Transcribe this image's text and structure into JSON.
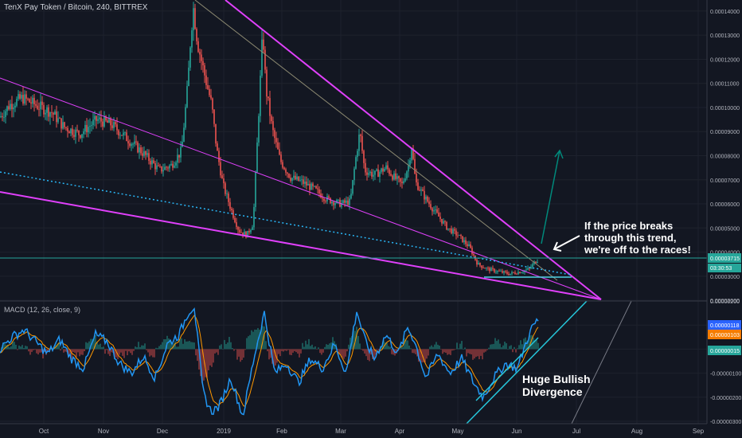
{
  "header": {
    "title": "TenX Pay Token / Bitcoin, 240, BITTREX"
  },
  "colors": {
    "background": "#131722",
    "grid": "#1e222d",
    "candle_up": "#26a69a",
    "candle_down": "#ef5350",
    "wedge": "#e040fb",
    "trendline": "#8d8a72",
    "dotted_trend": "#29b6f6",
    "horizontal_level": "#26a69a",
    "macd_line": "#2196f3",
    "signal_line": "#ff9800",
    "divergence": "#26c6da",
    "arrow": "#00897b"
  },
  "annotations": {
    "breakout_note": "If the price breaks through this trend, we're off to the races!",
    "divergence_note": "Huge Bullish Divergence"
  },
  "chart_data": [
    {
      "type": "candlestick",
      "x_ticks": [
        "Oct",
        "Nov",
        "Dec",
        "2019",
        "Feb",
        "Mar",
        "Apr",
        "May",
        "Jun",
        "Jul",
        "Aug",
        "Sep"
      ],
      "y_ticks": [
        "0.00014000",
        "0.00013000",
        "0.00012000",
        "0.00011000",
        "0.00010000",
        "0.00009000",
        "0.00008000",
        "0.00007000",
        "0.00006000",
        "0.00005000",
        "0.00004000",
        "0.00003000",
        "0.00002000"
      ],
      "ylim": [
        1.97e-05,
        0.0001446
      ],
      "price_tag": "0.00003715",
      "countdown_tag": "03:30:53",
      "path": [
        [
          0,
          9.6e-05
        ],
        [
          12,
          0.000101
        ],
        [
          28,
          0.000104
        ],
        [
          45,
          0.000101
        ],
        [
          65,
          9.8e-05
        ],
        [
          80,
          9.2e-05
        ],
        [
          100,
          8.9e-05
        ],
        [
          122,
          9.5e-05
        ],
        [
          140,
          9.3e-05
        ],
        [
          160,
          8.7e-05
        ],
        [
          180,
          8.1e-05
        ],
        [
          200,
          7.4e-05
        ],
        [
          215,
          7.6e-05
        ],
        [
          228,
          8.2e-05
        ],
        [
          236,
          0.00011
        ],
        [
          240,
          0.000132
        ],
        [
          243,
          0.000141
        ],
        [
          248,
          0.000127
        ],
        [
          258,
          0.000112
        ],
        [
          266,
          0.000101
        ],
        [
          272,
          8.3e-05
        ],
        [
          280,
          6.8e-05
        ],
        [
          290,
          5.8e-05
        ],
        [
          300,
          4.9e-05
        ],
        [
          310,
          4.7e-05
        ],
        [
          318,
          5.2e-05
        ],
        [
          322,
          7.8e-05
        ],
        [
          326,
          0.000105
        ],
        [
          330,
          0.000132
        ],
        [
          334,
          0.000108
        ],
        [
          342,
          9.1e-05
        ],
        [
          352,
          7.8e-05
        ],
        [
          365,
          7.1e-05
        ],
        [
          380,
          6.9e-05
        ],
        [
          395,
          6.6e-05
        ],
        [
          410,
          6.2e-05
        ],
        [
          428,
          6e-05
        ],
        [
          440,
          6.1e-05
        ],
        [
          446,
          7.7e-05
        ],
        [
          452,
          9e-05
        ],
        [
          458,
          7.4e-05
        ],
        [
          470,
          7.2e-05
        ],
        [
          485,
          7.5e-05
        ],
        [
          495,
          7.1e-05
        ],
        [
          505,
          6.8e-05
        ],
        [
          513,
          7.6e-05
        ],
        [
          517,
          8.4e-05
        ],
        [
          522,
          6.9e-05
        ],
        [
          535,
          6.2e-05
        ],
        [
          548,
          5.6e-05
        ],
        [
          562,
          5e-05
        ],
        [
          575,
          4.7e-05
        ],
        [
          590,
          4.2e-05
        ],
        [
          600,
          3.5e-05
        ],
        [
          612,
          3.3e-05
        ],
        [
          625,
          3.2e-05
        ],
        [
          640,
          3.1e-05
        ],
        [
          655,
          3.2e-05
        ],
        [
          665,
          3.3e-05
        ],
        [
          672,
          3.6e-05
        ],
        [
          676,
          3.7e-05
        ]
      ]
    },
    {
      "type": "line",
      "title": "MACD (12, 26, close, 9)",
      "y_ticks": [
        "0.00000200",
        "0.00000100",
        "0.00000000",
        "-0.00000100",
        "-0.00000200",
        "-0.00000300"
      ],
      "ylim": [
        -3.1e-06,
        2e-06
      ],
      "value_tags": [
        "0.00000118",
        "0.00000103",
        "0.00000015"
      ],
      "macd_path": [
        [
          0,
          0.0
        ],
        [
          15,
          5e-07
        ],
        [
          30,
          8e-07
        ],
        [
          45,
          3e-07
        ],
        [
          60,
          -2e-07
        ],
        [
          75,
          4e-07
        ],
        [
          90,
          -4e-07
        ],
        [
          105,
          -8e-07
        ],
        [
          120,
          6e-07
        ],
        [
          135,
          3e-07
        ],
        [
          150,
          -6e-07
        ],
        [
          165,
          -1e-06
        ],
        [
          180,
          -3e-07
        ],
        [
          195,
          -1.2e-06
        ],
        [
          210,
          2e-07
        ],
        [
          225,
          6e-07
        ],
        [
          236,
          1.5e-06
        ],
        [
          244,
          1.8e-06
        ],
        [
          255,
          -1.8e-06
        ],
        [
          265,
          -2.6e-06
        ],
        [
          275,
          -2.4e-06
        ],
        [
          290,
          -1.2e-06
        ],
        [
          305,
          -2.8e-06
        ],
        [
          320,
          -2e-07
        ],
        [
          332,
          1.5e-06
        ],
        [
          345,
          -1e-06
        ],
        [
          360,
          -6e-07
        ],
        [
          375,
          -1.4e-06
        ],
        [
          390,
          -4e-07
        ],
        [
          405,
          -8e-07
        ],
        [
          420,
          2e-07
        ],
        [
          435,
          -1e-06
        ],
        [
          448,
          1.6e-06
        ],
        [
          458,
          4e-07
        ],
        [
          470,
          -4e-07
        ],
        [
          485,
          6e-07
        ],
        [
          500,
          -2e-07
        ],
        [
          512,
          9e-07
        ],
        [
          520,
          4e-07
        ],
        [
          535,
          -1.2e-06
        ],
        [
          550,
          -2e-07
        ],
        [
          565,
          -1e-06
        ],
        [
          580,
          -4e-07
        ],
        [
          595,
          -1.4e-06
        ],
        [
          607,
          -2e-06
        ],
        [
          620,
          -1.2e-06
        ],
        [
          635,
          -6e-07
        ],
        [
          650,
          -8e-07
        ],
        [
          662,
          4e-07
        ],
        [
          670,
          1e-06
        ],
        [
          676,
          1.2e-06
        ]
      ]
    }
  ]
}
